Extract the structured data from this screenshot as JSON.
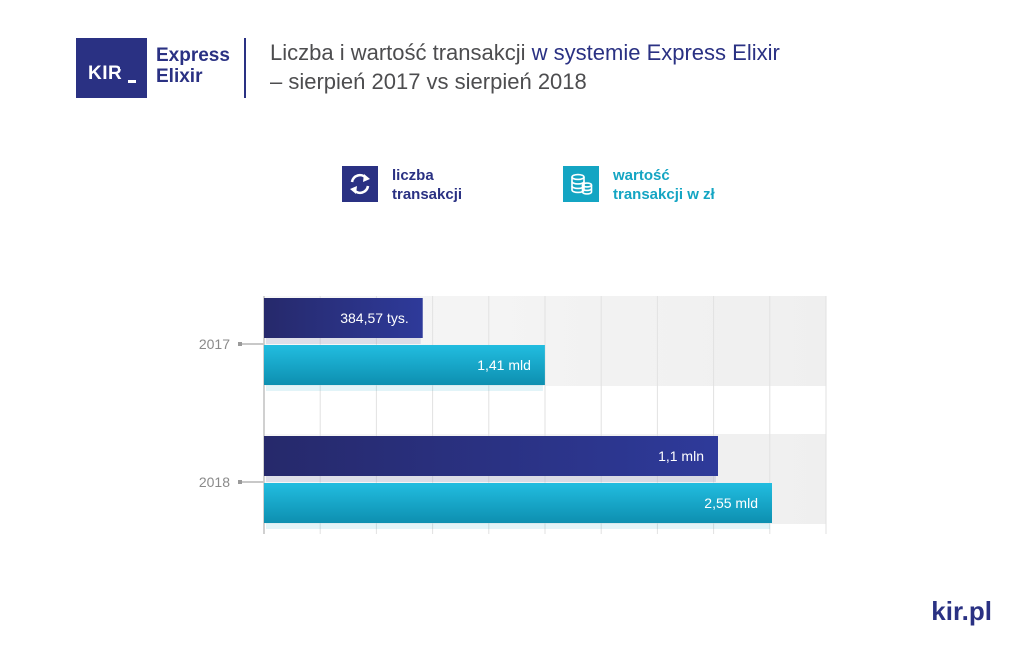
{
  "logo": {
    "kir": "KIR",
    "line1": "Express",
    "line2": "Elixir"
  },
  "title": {
    "part1": "Liczba i wartość transakcji ",
    "part2": "w systemie Express Elixir",
    "line2": "– sierpień 2017 vs sierpień 2018"
  },
  "legend": [
    {
      "line1": "liczba",
      "line2": "transakcji",
      "icon": "exchange-arrows-icon",
      "color": "#2a3183"
    },
    {
      "line1": "wartość",
      "line2": "transakcji w zł",
      "icon": "coins-stack-icon",
      "color": "#14a5c3"
    }
  ],
  "chart_data": {
    "type": "bar",
    "orientation": "horizontal",
    "categories": [
      "2017",
      "2018"
    ],
    "series": [
      {
        "name": "liczba transakcji",
        "color": "#2a3183",
        "values": [
          384.57,
          1100
        ],
        "labels": [
          "384,57 tys.",
          "1,1 mln"
        ],
        "unit": "tys."
      },
      {
        "name": "wartość transakcji w zł",
        "color": "#14a5c3",
        "values": [
          1.41,
          2.55
        ],
        "labels": [
          "1,41 mld",
          "2,55 mld"
        ],
        "unit": "mld zł"
      }
    ],
    "grid": true
  },
  "footer": "kir.pl"
}
